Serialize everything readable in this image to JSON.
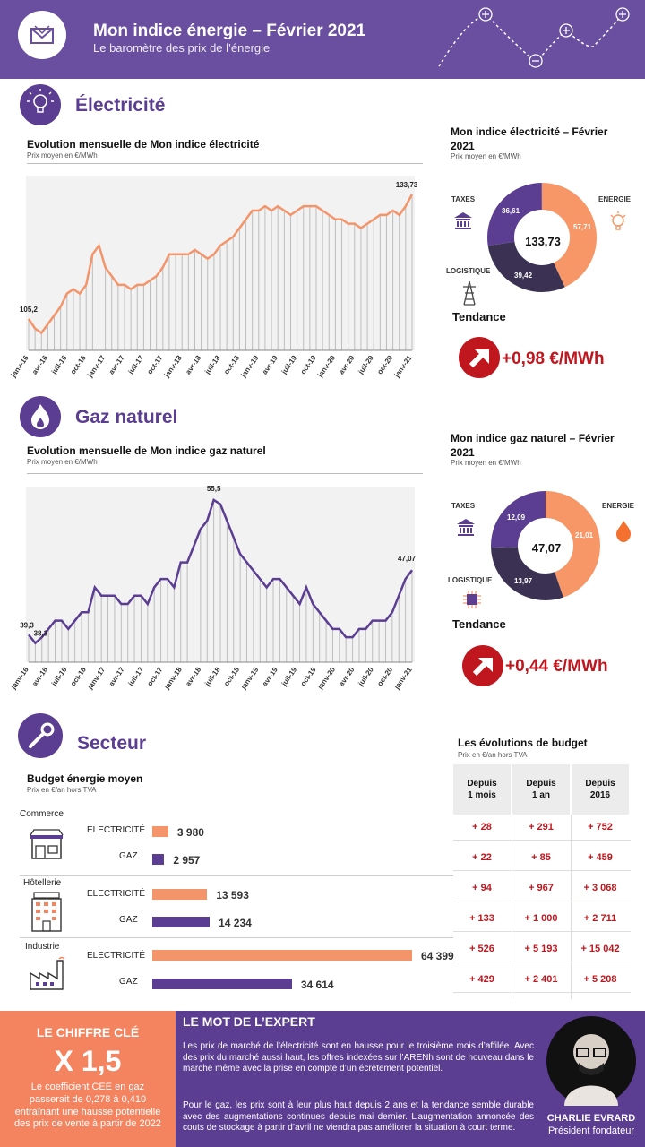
{
  "header": {
    "title": "Mon indice énergie – Février 2021",
    "subtitle": "Le baromètre des prix de l’énergie"
  },
  "electricite": {
    "section_title": "Électricité",
    "chart": {
      "title": "Evolution mensuelle de Mon indice électricité",
      "subtitle": "Prix moyen en €/MWh"
    },
    "donut": {
      "title": "Mon indice électricité – Février 2021",
      "subtitle": "Prix moyen en €/MWh",
      "total": "133,73",
      "labels": {
        "taxes": "TAXES",
        "energie": "ENERGIE",
        "logistique": "LOGISTIQUE"
      },
      "values": {
        "taxes": "36,61",
        "energie": "57,71",
        "logistique": "39,42"
      },
      "colors": {
        "taxes": "#5b3d91",
        "energie": "#f79767",
        "logistique": "#3b3253"
      }
    },
    "tendance": {
      "label": "Tendance",
      "value": "+0,98 €/MWh"
    }
  },
  "gaz": {
    "section_title": "Gaz naturel",
    "chart": {
      "title": "Evolution mensuelle de Mon indice gaz naturel",
      "subtitle": "Prix moyen en €/MWh"
    },
    "donut": {
      "title": "Mon indice gaz naturel – Février 2021",
      "subtitle": "Prix moyen en €/MWh",
      "total": "47,07",
      "labels": {
        "taxes": "TAXES",
        "energie": "ENERGIE",
        "logistique": "LOGISTIQUE"
      },
      "values": {
        "taxes": "12,09",
        "energie": "21,01",
        "logistique": "13,97"
      },
      "colors": {
        "taxes": "#5b3d91",
        "energie": "#f79767",
        "logistique": "#3b3253"
      }
    },
    "tendance": {
      "label": "Tendance",
      "value": "+0,44 €/MWh"
    }
  },
  "secteur": {
    "section_title": "Secteur",
    "budget": {
      "title": "Budget énergie moyen",
      "subtitle": "Prix en €/an hors TVA",
      "groups": [
        {
          "name": "Commerce",
          "rows": [
            {
              "label": "ELECTRICITÉ",
              "value": "3 980",
              "num": 3980
            },
            {
              "label": "GAZ",
              "value": "2 957",
              "num": 2957
            }
          ]
        },
        {
          "name": "Hôtellerie",
          "rows": [
            {
              "label": "ELECTRICITÉ",
              "value": "13 593",
              "num": 13593
            },
            {
              "label": "GAZ",
              "value": "14 234",
              "num": 14234
            }
          ]
        },
        {
          "name": "Industrie",
          "rows": [
            {
              "label": "ELECTRICITÉ",
              "value": "64 399",
              "num": 64399
            },
            {
              "label": "GAZ",
              "value": "34 614",
              "num": 34614
            }
          ]
        }
      ]
    },
    "table": {
      "title": "Les évolutions de budget",
      "subtitle": "Prix en €/an hors TVA",
      "headers": [
        "Depuis\n1 mois",
        "Depuis\n1 an",
        "Depuis\n2016"
      ],
      "rows": [
        [
          "+ 28",
          "+ 291",
          "+ 752"
        ],
        [
          "+ 22",
          "+ 85",
          "+ 459"
        ],
        [
          "+ 94",
          "+ 967",
          "+ 3 068"
        ],
        [
          "+ 133",
          "+ 1 000",
          "+ 2 711"
        ],
        [
          "+ 526",
          "+ 5 193",
          "+ 15 042"
        ],
        [
          "+ 429",
          "+ 2 401",
          "+ 5 208"
        ]
      ]
    }
  },
  "chiffre_cle": {
    "title": "LE CHIFFRE CLÉ",
    "value": "X 1,5",
    "text": "Le coefficient CEE en gaz passerait de 0,278 à 0,410 entraînant une hausse potentielle des prix de vente à partir de 2022"
  },
  "expert": {
    "title": "LE MOT DE L’EXPERT",
    "p1": "Les prix de marché de l’électricité sont en hausse pour le troisième mois d’affilée. Avec des prix du marché aussi haut, les offres indexées sur l’ARENh sont de nouveau dans le marché même avec la prise en compte d’un écrêtement potentiel.",
    "p2": "Pour le gaz, les prix sont à leur plus haut depuis 2 ans et la tendance semble durable avec des augmentations continues depuis mai dernier. L’augmentation annoncée des couts de stockage à partir d’avril ne viendra pas améliorer la situation à court terme.",
    "name": "CHARLIE EVRARD",
    "role": "Président fondateur"
  },
  "chart_data": [
    {
      "type": "line",
      "title": "Evolution mensuelle de Mon indice électricité",
      "ylabel": "Prix moyen en €/MWh",
      "x_ticks": [
        "janv-16",
        "avr-16",
        "juil-16",
        "oct-16",
        "janv-17",
        "avr-17",
        "juil-17",
        "oct-17",
        "janv-18",
        "avr-18",
        "juil-18",
        "oct-18",
        "janv-19",
        "avr-19",
        "juil-19",
        "oct-19",
        "janv-20",
        "avr-20",
        "juil-20",
        "oct-20",
        "janv-21"
      ],
      "series": [
        {
          "color": "#f4946a",
          "values": [
            105.2,
            103,
            102,
            104,
            106,
            108,
            111,
            112,
            111,
            113,
            120,
            122,
            117,
            115,
            113,
            113,
            112,
            113,
            113,
            114,
            115,
            117,
            120,
            120,
            120,
            120,
            121,
            120,
            119,
            120,
            122,
            123,
            124,
            126,
            128,
            130,
            130,
            131,
            130,
            131,
            130,
            129,
            130,
            131,
            131,
            131,
            130,
            129,
            128,
            128,
            127,
            127,
            126,
            127,
            128,
            129,
            129,
            130,
            129,
            131,
            133.73
          ]
        }
      ],
      "annotations": [
        "105,2",
        "133,73"
      ]
    },
    {
      "type": "line",
      "title": "Evolution mensuelle de Mon indice gaz naturel",
      "ylabel": "Prix moyen en €/MWh",
      "x_ticks": [
        "janv-16",
        "avr-16",
        "juil-16",
        "oct-16",
        "janv-17",
        "avr-17",
        "juil-17",
        "oct-17",
        "janv-18",
        "avr-18",
        "juil-18",
        "oct-18",
        "janv-19",
        "avr-19",
        "juil-19",
        "oct-19",
        "janv-20",
        "avr-20",
        "juil-20",
        "oct-20",
        "janv-21"
      ],
      "series": [
        {
          "color": "#5b3d91",
          "values": [
            39.3,
            38.3,
            39,
            40,
            41,
            41,
            40,
            41,
            42,
            42,
            45,
            44,
            44,
            44,
            43,
            43,
            44,
            44,
            43,
            45,
            46,
            46,
            45,
            48,
            48,
            50,
            52,
            53,
            55.5,
            55,
            53,
            51,
            49,
            48,
            47,
            46,
            45,
            46,
            46,
            45,
            44,
            43,
            45,
            43,
            42,
            41,
            40,
            40,
            39,
            39,
            40,
            40,
            41,
            41,
            41,
            42,
            44,
            46,
            47.07
          ]
        }
      ],
      "annotations": [
        "39,3",
        "38,3",
        "55,5",
        "47,07"
      ]
    }
  ]
}
